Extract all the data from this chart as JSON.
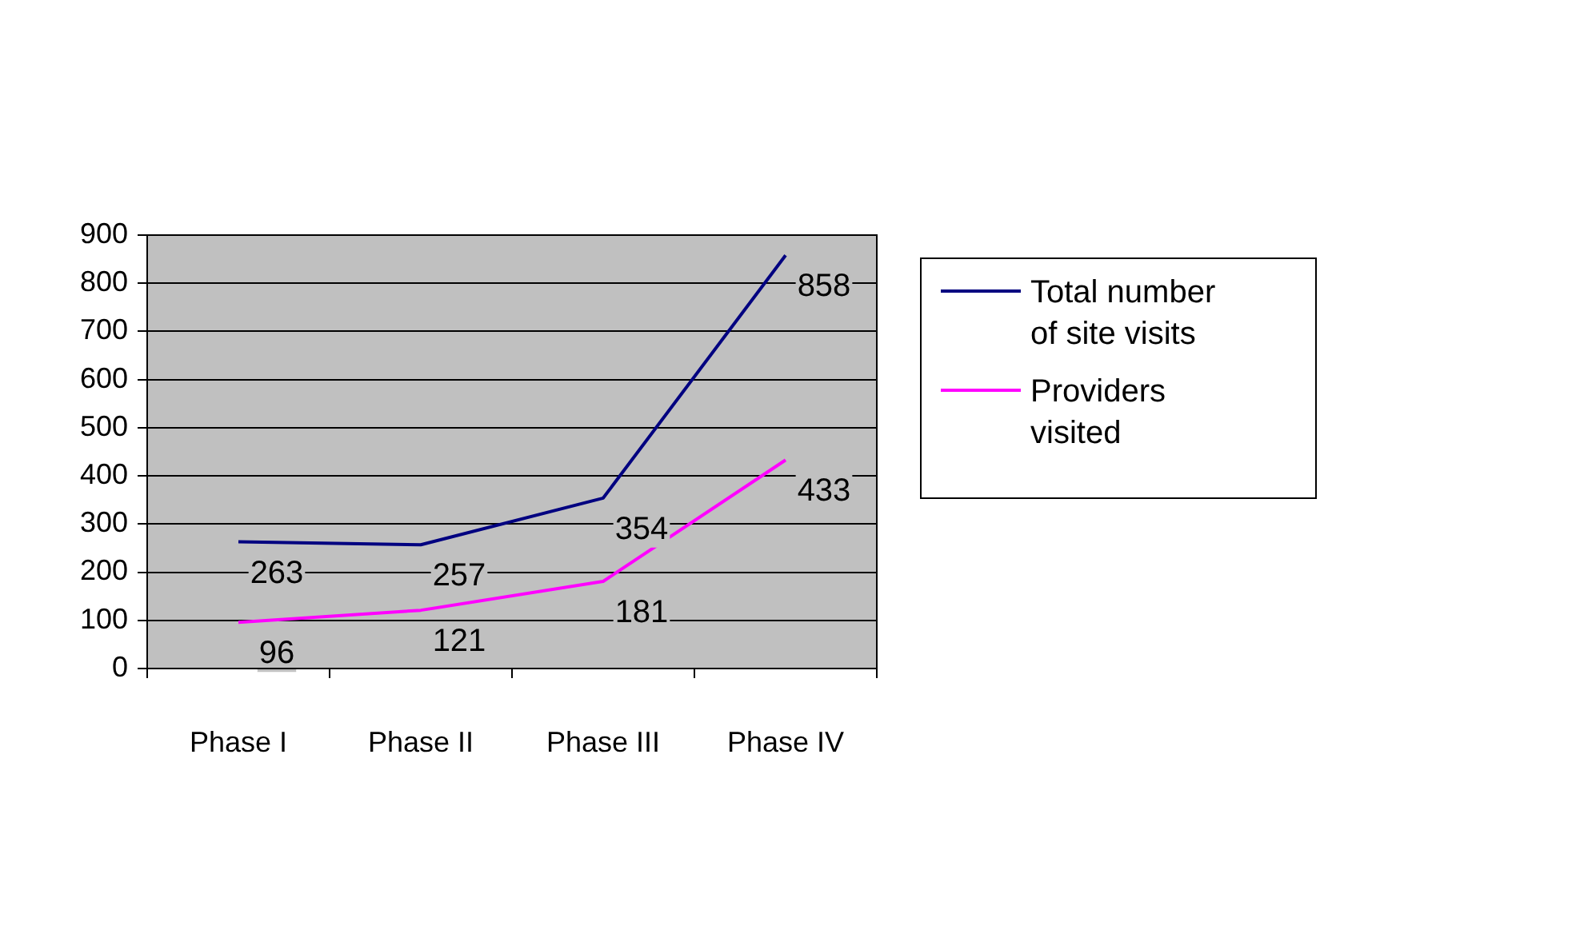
{
  "chart_data": {
    "type": "line",
    "categories": [
      "Phase I",
      "Phase II",
      "Phase III",
      "Phase IV"
    ],
    "series": [
      {
        "name": "Total number of site visits",
        "color": "#000080",
        "values": [
          263,
          257,
          354,
          858
        ]
      },
      {
        "name": "Providers visited",
        "color": "#ff00ff",
        "values": [
          96,
          121,
          181,
          433
        ]
      }
    ],
    "ylim": [
      0,
      900
    ],
    "yticks": [
      0,
      100,
      200,
      300,
      400,
      500,
      600,
      700,
      800,
      900
    ],
    "grid": "y",
    "legend": "right",
    "data_labels": true,
    "marker": "none",
    "line_style": "solid"
  }
}
